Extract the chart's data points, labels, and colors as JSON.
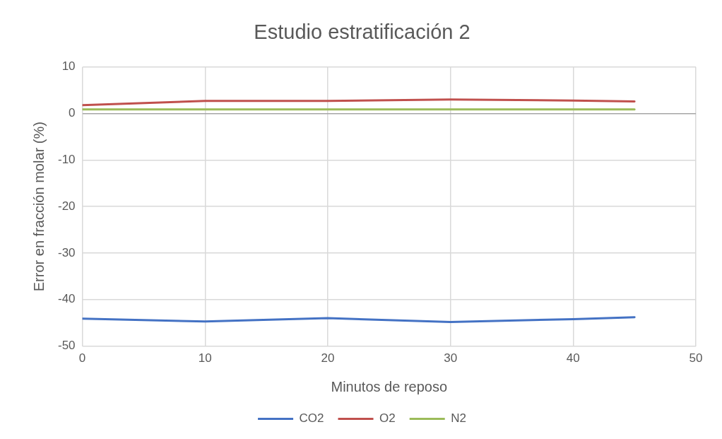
{
  "chart_data": {
    "type": "line",
    "title": "Estudio estratificación 2",
    "xlabel": "Minutos de reposo",
    "ylabel": "Error en fracción molar (%)",
    "x": [
      0,
      10,
      20,
      30,
      40,
      45
    ],
    "series": [
      {
        "name": "CO2",
        "color": "#4472c4",
        "values": [
          -44.1,
          -44.7,
          -44.0,
          -44.8,
          -44.2,
          -43.8
        ]
      },
      {
        "name": "O2",
        "color": "#c0504d",
        "values": [
          1.8,
          2.7,
          2.7,
          3.0,
          2.8,
          2.6
        ]
      },
      {
        "name": "N2",
        "color": "#9bbb59",
        "values": [
          0.9,
          0.9,
          0.9,
          0.9,
          0.9,
          0.9
        ]
      }
    ],
    "xlim": [
      0,
      50
    ],
    "xticks": [
      0,
      10,
      20,
      30,
      40,
      50
    ],
    "ylim": [
      -50,
      10
    ],
    "yticks": [
      -50,
      -40,
      -30,
      -20,
      -10,
      0,
      10
    ],
    "grid": true,
    "legend": "bottom",
    "marker": "none",
    "line_style": "solid"
  }
}
